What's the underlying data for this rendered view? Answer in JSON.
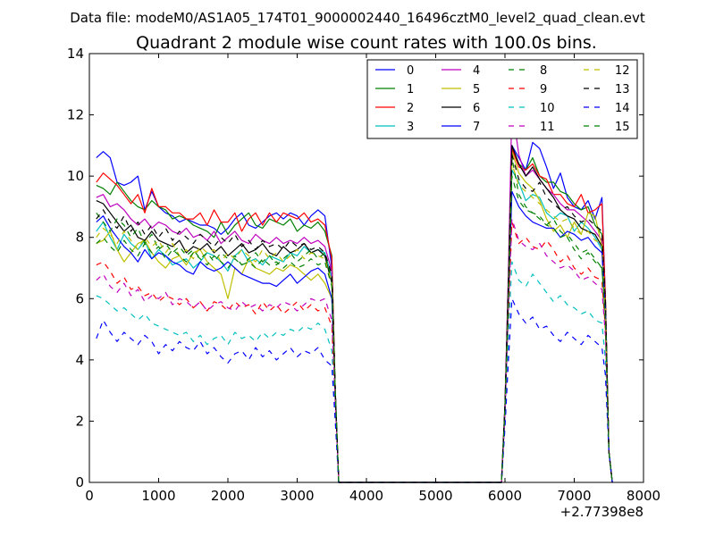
{
  "suptitle": "Data file: modeM0/AS1A05_174T01_9000002440_16496cztM0_level2_quad_clean.evt",
  "chart_data": {
    "type": "line",
    "title": "Quadrant 2 module wise count rates with 100.0s bins.",
    "xlabel": "",
    "ylabel": "",
    "xlim": [
      0,
      8000
    ],
    "ylim": [
      0,
      14
    ],
    "x_offset_label": "+2.77398e8",
    "xticks": [
      0,
      1000,
      2000,
      3000,
      4000,
      5000,
      6000,
      7000,
      8000
    ],
    "yticks": [
      0,
      2,
      4,
      6,
      8,
      10,
      12,
      14
    ],
    "xtick_labels": [
      "0",
      "1000",
      "2000",
      "3000",
      "4000",
      "5000",
      "6000",
      "7000",
      "8000"
    ],
    "ytick_labels": [
      "0",
      "2",
      "4",
      "6",
      "8",
      "10",
      "12",
      "14"
    ],
    "legend_position": "top-right",
    "legend_columns": 4,
    "segments": {
      "x1": [
        100,
        200,
        300,
        400,
        500,
        600,
        700,
        800,
        900,
        1000,
        1100,
        1200,
        1300,
        1400,
        1500,
        1600,
        1700,
        1800,
        1900,
        2000,
        2100,
        2200,
        2300,
        2400,
        2500,
        2600,
        2700,
        2800,
        2900,
        3000,
        3100,
        3200,
        3300,
        3400,
        3500,
        3550,
        3600,
        3650
      ],
      "x2": [
        5950,
        6000,
        6050,
        6100,
        6200,
        6300,
        6400,
        6500,
        6600,
        6700,
        6800,
        6900,
        7000,
        7100,
        7200,
        7300,
        7400,
        7450,
        7500,
        7550
      ]
    },
    "series": [
      {
        "name": "0",
        "color": "#0000ff",
        "dash": "solid",
        "seg1": [
          10.6,
          10.8,
          10.6,
          9.8,
          9.7,
          9.8,
          10.0,
          8.9,
          9.5,
          9.0,
          8.8,
          8.7,
          8.5,
          8.6,
          8.5,
          8.4,
          8.4,
          8.3,
          8.1,
          8.3,
          8.6,
          8.8,
          8.4,
          8.3,
          8.5,
          8.7,
          8.8,
          8.6,
          8.8,
          8.7,
          8.4,
          8.7,
          8.9,
          8.7,
          7.0,
          3.0,
          0.0,
          0.0
        ],
        "seg2": [
          0.0,
          2.5,
          6.5,
          11.0,
          10.6,
          10.2,
          11.1,
          10.9,
          10.3,
          9.6,
          10.1,
          9.3,
          9.0,
          8.9,
          9.2,
          8.6,
          9.3,
          6.0,
          1.0,
          0.0
        ]
      },
      {
        "name": "1",
        "color": "#008000",
        "dash": "solid",
        "seg1": [
          9.7,
          9.6,
          9.4,
          9.8,
          9.5,
          9.2,
          9.0,
          8.9,
          9.2,
          9.0,
          8.9,
          8.6,
          8.7,
          8.6,
          8.4,
          8.3,
          8.2,
          8.0,
          8.5,
          8.1,
          8.4,
          8.6,
          8.8,
          8.4,
          8.3,
          8.6,
          8.5,
          8.4,
          8.6,
          8.2,
          8.4,
          8.3,
          8.5,
          8.2,
          7.4,
          3.0,
          0.0,
          0.0
        ],
        "seg2": [
          0.0,
          2.5,
          6.5,
          10.9,
          10.4,
          10.2,
          10.6,
          10.0,
          9.8,
          9.8,
          9.5,
          9.4,
          9.1,
          8.9,
          9.0,
          8.4,
          8.1,
          6.0,
          1.0,
          0.0
        ]
      },
      {
        "name": "2",
        "color": "#ff0000",
        "dash": "solid",
        "seg1": [
          9.8,
          10.1,
          9.9,
          9.7,
          9.4,
          9.1,
          9.4,
          8.8,
          9.6,
          9.0,
          9.0,
          8.8,
          8.8,
          8.6,
          8.6,
          8.8,
          8.4,
          8.9,
          8.5,
          8.5,
          8.8,
          8.2,
          8.6,
          8.8,
          8.4,
          8.8,
          8.5,
          8.8,
          8.7,
          8.6,
          8.8,
          8.5,
          8.6,
          8.4,
          7.3,
          3.0,
          0.0,
          0.0
        ],
        "seg2": [
          0.0,
          2.4,
          6.3,
          10.9,
          10.3,
          10.2,
          10.4,
          10.0,
          9.9,
          9.4,
          9.4,
          9.1,
          9.0,
          9.4,
          8.8,
          8.9,
          9.1,
          6.0,
          1.0,
          0.0
        ]
      },
      {
        "name": "3",
        "color": "#00bfbf",
        "dash": "solid",
        "seg1": [
          8.2,
          8.5,
          8.0,
          7.6,
          8.1,
          7.8,
          7.6,
          7.9,
          7.3,
          7.6,
          7.4,
          7.1,
          7.2,
          7.3,
          7.0,
          7.2,
          7.5,
          7.4,
          7.2,
          6.9,
          7.4,
          7.6,
          7.2,
          7.3,
          7.1,
          7.4,
          7.3,
          7.2,
          7.5,
          7.4,
          7.7,
          7.5,
          7.6,
          7.5,
          6.7,
          3.0,
          0.0,
          0.0
        ],
        "seg2": [
          0.0,
          2.3,
          6.0,
          10.2,
          9.8,
          9.2,
          9.4,
          9.3,
          8.8,
          8.6,
          8.8,
          8.7,
          8.2,
          8.5,
          8.3,
          8.0,
          7.6,
          5.6,
          1.0,
          0.0
        ]
      },
      {
        "name": "4",
        "color": "#bf00bf",
        "dash": "solid",
        "seg1": [
          9.3,
          9.4,
          9.0,
          9.1,
          8.9,
          8.6,
          8.4,
          8.6,
          8.3,
          8.5,
          8.4,
          8.2,
          8.1,
          8.3,
          8.0,
          8.1,
          7.9,
          8.2,
          7.8,
          8.0,
          8.2,
          7.9,
          7.8,
          8.1,
          7.9,
          7.8,
          8.0,
          7.8,
          7.9,
          7.8,
          8.0,
          7.8,
          7.9,
          7.7,
          6.9,
          3.0,
          0.0,
          0.0
        ],
        "seg2": [
          0.0,
          2.6,
          7.0,
          12.3,
          10.7,
          10.0,
          10.2,
          9.9,
          9.6,
          9.4,
          9.1,
          8.9,
          8.9,
          8.7,
          8.5,
          8.2,
          7.9,
          5.7,
          1.0,
          0.0
        ]
      },
      {
        "name": "5",
        "color": "#bfbf00",
        "dash": "solid",
        "seg1": [
          7.8,
          7.9,
          8.2,
          7.6,
          7.2,
          7.5,
          7.8,
          7.9,
          7.5,
          7.2,
          7.0,
          7.3,
          7.4,
          7.1,
          7.5,
          7.6,
          7.2,
          7.0,
          6.8,
          6.0,
          7.0,
          6.8,
          7.3,
          7.0,
          6.9,
          6.8,
          7.0,
          6.9,
          7.1,
          7.0,
          6.8,
          6.6,
          6.8,
          6.5,
          6.0,
          3.0,
          0.0,
          0.0
        ],
        "seg2": [
          0.0,
          2.4,
          6.2,
          10.8,
          10.1,
          9.8,
          9.6,
          9.2,
          8.6,
          8.2,
          8.4,
          8.0,
          8.5,
          8.1,
          8.8,
          8.7,
          7.7,
          5.6,
          1.0,
          0.0
        ]
      },
      {
        "name": "6",
        "color": "#000000",
        "dash": "solid",
        "seg1": [
          9.2,
          9.1,
          8.8,
          8.5,
          8.2,
          8.4,
          8.0,
          7.9,
          8.2,
          7.9,
          7.8,
          7.7,
          7.9,
          7.5,
          7.7,
          7.6,
          7.8,
          7.5,
          7.7,
          7.4,
          7.6,
          7.8,
          7.5,
          7.6,
          7.8,
          7.5,
          7.4,
          7.7,
          7.5,
          7.6,
          7.8,
          7.5,
          7.6,
          7.4,
          6.5,
          3.0,
          0.0,
          0.0
        ],
        "seg2": [
          0.0,
          2.5,
          6.6,
          11.0,
          10.4,
          10.0,
          10.3,
          9.9,
          9.6,
          9.3,
          8.9,
          8.7,
          8.6,
          8.3,
          8.2,
          8.1,
          7.7,
          5.8,
          1.0,
          0.0
        ]
      },
      {
        "name": "7",
        "color": "#0000ff",
        "dash": "solid",
        "seg1": [
          8.5,
          8.7,
          8.3,
          8.0,
          7.7,
          7.5,
          7.2,
          7.6,
          7.3,
          7.5,
          7.4,
          7.2,
          7.1,
          6.9,
          6.8,
          7.2,
          7.0,
          6.9,
          7.0,
          7.2,
          7.0,
          6.8,
          6.7,
          6.6,
          6.5,
          6.5,
          6.4,
          6.6,
          6.8,
          6.5,
          6.7,
          6.9,
          7.0,
          6.8,
          6.0,
          3.0,
          0.0,
          0.0
        ],
        "seg2": [
          0.0,
          2.3,
          6.0,
          9.5,
          9.0,
          8.7,
          8.5,
          8.4,
          8.3,
          8.3,
          8.0,
          8.2,
          8.1,
          7.9,
          8.0,
          7.7,
          7.5,
          5.5,
          1.0,
          0.0
        ]
      },
      {
        "name": "8",
        "color": "#008000",
        "dash": "dashed",
        "seg1": [
          8.8,
          8.5,
          8.2,
          8.6,
          8.4,
          8.0,
          8.3,
          7.8,
          8.1,
          7.6,
          7.8,
          7.5,
          7.7,
          7.4,
          7.6,
          7.3,
          7.5,
          7.2,
          7.5,
          7.3,
          7.4,
          7.1,
          7.3,
          7.5,
          7.2,
          7.4,
          7.1,
          7.3,
          7.5,
          7.2,
          7.4,
          7.6,
          7.3,
          7.5,
          6.6,
          3.0,
          0.0,
          0.0
        ],
        "seg2": [
          0.0,
          2.4,
          6.1,
          10.6,
          9.4,
          9.0,
          8.8,
          8.7,
          8.4,
          8.6,
          8.2,
          8.0,
          7.6,
          7.3,
          7.5,
          7.2,
          7.0,
          5.4,
          1.0,
          0.0
        ]
      },
      {
        "name": "9",
        "color": "#ff0000",
        "dash": "dashed",
        "seg1": [
          7.1,
          7.2,
          6.9,
          6.5,
          6.7,
          6.3,
          6.4,
          6.1,
          6.2,
          5.9,
          6.1,
          6.0,
          5.8,
          6.0,
          5.7,
          5.9,
          5.6,
          5.9,
          5.8,
          5.6,
          5.9,
          5.7,
          5.8,
          5.5,
          5.9,
          5.6,
          5.8,
          5.5,
          5.7,
          5.9,
          5.6,
          5.8,
          5.6,
          5.7,
          5.1,
          2.6,
          0.0,
          0.0
        ],
        "seg2": [
          0.0,
          2.2,
          5.5,
          8.5,
          7.8,
          8.0,
          7.7,
          7.6,
          7.9,
          7.6,
          7.2,
          7.4,
          7.0,
          6.8,
          7.0,
          6.7,
          6.6,
          5.0,
          1.0,
          0.0
        ]
      },
      {
        "name": "10",
        "color": "#00bfbf",
        "dash": "dashed",
        "seg1": [
          6.1,
          6.0,
          5.8,
          5.6,
          5.7,
          5.5,
          5.3,
          5.5,
          5.2,
          5.1,
          5.0,
          4.9,
          4.8,
          4.9,
          4.6,
          4.8,
          4.5,
          4.7,
          4.8,
          4.5,
          4.9,
          4.7,
          4.8,
          4.6,
          4.9,
          4.7,
          4.9,
          4.8,
          5.0,
          4.9,
          5.1,
          5.0,
          5.2,
          5.0,
          4.3,
          2.2,
          0.0,
          0.0
        ],
        "seg2": [
          0.0,
          2.0,
          4.8,
          7.2,
          6.6,
          6.4,
          6.8,
          6.5,
          6.2,
          5.9,
          6.1,
          5.8,
          5.7,
          5.5,
          5.6,
          5.3,
          5.2,
          4.0,
          1.0,
          0.0
        ]
      },
      {
        "name": "11",
        "color": "#bf00bf",
        "dash": "dashed",
        "seg1": [
          6.6,
          6.8,
          6.4,
          6.2,
          6.5,
          6.1,
          6.3,
          5.9,
          6.1,
          6.0,
          6.2,
          5.8,
          6.0,
          5.9,
          5.7,
          5.9,
          5.6,
          5.8,
          5.9,
          5.7,
          5.6,
          5.9,
          5.7,
          5.8,
          5.6,
          5.8,
          5.7,
          5.9,
          5.8,
          5.6,
          5.8,
          6.0,
          5.9,
          6.0,
          5.3,
          2.6,
          0.0,
          0.0
        ],
        "seg2": [
          0.0,
          2.2,
          5.6,
          8.6,
          7.9,
          7.7,
          7.6,
          7.8,
          7.4,
          7.2,
          7.0,
          7.1,
          6.9,
          6.6,
          6.7,
          6.5,
          6.3,
          4.8,
          1.0,
          0.0
        ]
      },
      {
        "name": "12",
        "color": "#bfbf00",
        "dash": "dashed",
        "seg1": [
          8.0,
          8.3,
          8.1,
          7.8,
          8.2,
          7.9,
          7.6,
          8.0,
          7.7,
          7.9,
          7.5,
          7.8,
          7.4,
          7.6,
          7.3,
          7.7,
          7.5,
          7.6,
          7.2,
          7.5,
          7.3,
          7.6,
          7.4,
          7.2,
          7.6,
          7.3,
          7.5,
          7.2,
          7.4,
          7.6,
          7.3,
          7.5,
          7.4,
          7.3,
          6.5,
          3.0,
          0.0,
          0.0
        ],
        "seg2": [
          0.0,
          2.4,
          6.2,
          10.4,
          9.7,
          9.5,
          9.3,
          9.1,
          8.9,
          8.7,
          8.5,
          8.6,
          8.3,
          8.1,
          8.2,
          7.9,
          7.8,
          5.7,
          1.0,
          0.0
        ]
      },
      {
        "name": "13",
        "color": "#000000",
        "dash": "dashed",
        "seg1": [
          8.6,
          8.9,
          8.5,
          8.3,
          8.7,
          8.2,
          8.5,
          8.1,
          8.4,
          8.0,
          8.3,
          7.9,
          8.2,
          8.0,
          7.8,
          8.1,
          7.9,
          7.7,
          8.0,
          7.8,
          8.1,
          7.7,
          7.9,
          7.6,
          7.9,
          7.7,
          7.8,
          7.6,
          7.9,
          7.7,
          7.8,
          7.6,
          7.7,
          7.5,
          6.8,
          3.0,
          0.0,
          0.0
        ],
        "seg2": [
          0.0,
          2.5,
          6.4,
          10.7,
          9.9,
          9.6,
          9.5,
          9.8,
          9.3,
          9.1,
          8.9,
          9.0,
          8.7,
          8.5,
          8.6,
          8.4,
          8.2,
          5.9,
          1.0,
          0.0
        ]
      },
      {
        "name": "14",
        "color": "#0000ff",
        "dash": "dashed",
        "seg1": [
          4.7,
          5.3,
          4.9,
          4.6,
          4.9,
          4.7,
          4.5,
          4.8,
          4.6,
          4.2,
          4.5,
          4.3,
          4.6,
          4.4,
          4.3,
          4.6,
          4.2,
          4.4,
          4.1,
          3.9,
          4.2,
          4.3,
          4.0,
          4.4,
          4.1,
          4.3,
          4.0,
          4.2,
          4.4,
          4.1,
          4.3,
          4.2,
          4.4,
          4.0,
          3.8,
          2.0,
          0.0,
          0.0
        ],
        "seg2": [
          0.0,
          1.8,
          4.0,
          6.0,
          5.5,
          5.2,
          5.4,
          5.0,
          5.1,
          4.8,
          4.6,
          4.9,
          4.7,
          4.5,
          4.8,
          4.6,
          4.4,
          3.5,
          1.0,
          0.0
        ]
      },
      {
        "name": "15",
        "color": "#008000",
        "dash": "dashed",
        "seg1": [
          7.8,
          8.0,
          7.7,
          7.5,
          7.9,
          7.6,
          7.4,
          7.8,
          7.5,
          7.7,
          7.3,
          7.6,
          7.4,
          7.2,
          7.5,
          7.3,
          7.1,
          7.4,
          7.2,
          7.0,
          7.3,
          7.1,
          7.2,
          7.0,
          7.3,
          7.1,
          7.2,
          7.0,
          7.2,
          7.0,
          7.1,
          7.3,
          7.1,
          7.2,
          6.4,
          3.0,
          0.0,
          0.0
        ],
        "seg2": [
          0.0,
          2.4,
          6.0,
          10.0,
          9.2,
          8.9,
          8.8,
          8.6,
          8.4,
          8.3,
          8.0,
          8.1,
          7.8,
          7.5,
          7.6,
          7.3,
          7.0,
          5.2,
          1.0,
          0.0
        ]
      }
    ]
  }
}
